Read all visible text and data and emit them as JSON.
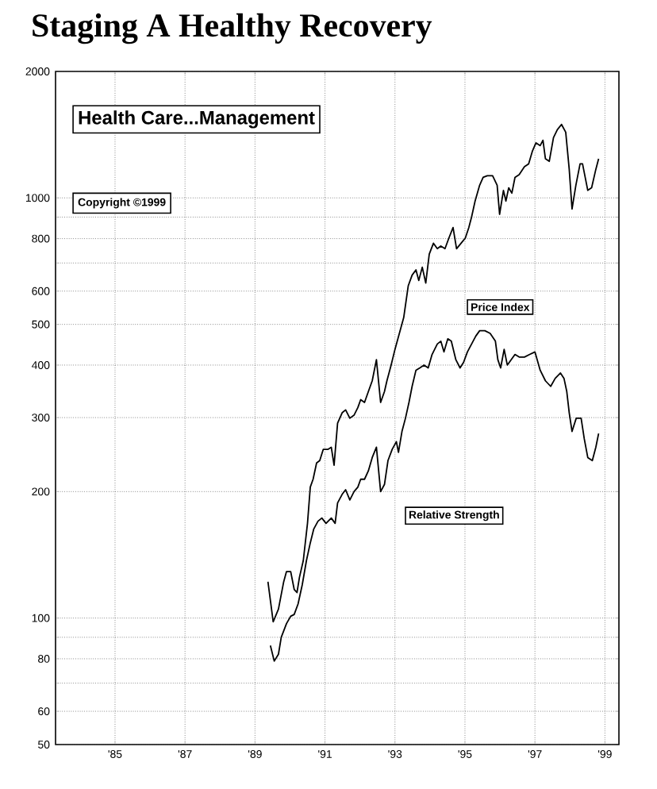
{
  "chart_data": {
    "type": "line",
    "title": "Staging A Healthy Recovery",
    "subtitle": "Health Care...Management",
    "annotations": [
      "Copyright ©1999"
    ],
    "x": [
      1989.37,
      1989.52,
      1989.67,
      1989.82,
      1989.9,
      1990.02,
      1990.12,
      1990.2,
      1990.27,
      1990.38,
      1990.5,
      1990.58,
      1990.66,
      1990.76,
      1990.85,
      1990.95,
      1991.08,
      1991.18,
      1991.26,
      1991.36,
      1991.49,
      1991.59,
      1991.71,
      1991.83,
      1991.94,
      1992.02,
      1992.13,
      1992.24,
      1992.35,
      1992.47,
      1992.59,
      1992.7,
      1992.77,
      1992.89,
      1993.0,
      1993.25,
      1993.38,
      1993.49,
      1993.6,
      1993.68,
      1993.78,
      1993.88,
      1993.98,
      1994.1,
      1994.21,
      1994.31,
      1994.43,
      1994.54,
      1994.66,
      1994.76,
      1994.89,
      1995.01,
      1995.11,
      1995.19,
      1995.29,
      1995.42,
      1995.52,
      1995.64,
      1995.79,
      1995.92,
      1995.99,
      1996.1,
      1996.17,
      1996.25,
      1996.34,
      1996.43,
      1996.55,
      1996.7,
      1996.82,
      1996.93,
      1997.03,
      1997.15,
      1997.23,
      1997.3,
      1997.41,
      1997.53,
      1997.64,
      1997.76,
      1997.88,
      1997.98,
      1998.06,
      1998.17,
      1998.29,
      1998.36,
      1998.51,
      1998.62,
      1998.74,
      1998.82
    ],
    "series": [
      {
        "name": "Price Index",
        "color": "#000000",
        "values": [
          122,
          98,
          105,
          122,
          129,
          129,
          117,
          115,
          125,
          137,
          168,
          205,
          214,
          234,
          237,
          252,
          252,
          255,
          231,
          291,
          308,
          313,
          299,
          304,
          317,
          331,
          326,
          346,
          367,
          412,
          326,
          346,
          367,
          400,
          436,
          519,
          618,
          655,
          674,
          636,
          684,
          627,
          735,
          780,
          757,
          768,
          757,
          802,
          850,
          757,
          780,
          802,
          850,
          901,
          983,
          1072,
          1119,
          1129,
          1129,
          1072,
          914,
          1042,
          983,
          1057,
          1026,
          1119,
          1136,
          1186,
          1205,
          1294,
          1352,
          1332,
          1371,
          1239,
          1222,
          1392,
          1453,
          1496,
          1433,
          1169,
          941,
          1072,
          1205,
          1205,
          1042,
          1057,
          1169,
          1239
        ]
      },
      {
        "name": "Relative Strength",
        "color": "#000000",
        "x": [
          1989.44,
          1989.55,
          1989.67,
          1989.75,
          1989.9,
          1990.02,
          1990.12,
          1990.23,
          1990.35,
          1990.47,
          1990.58,
          1990.68,
          1990.8,
          1990.91,
          1991.03,
          1991.18,
          1991.29,
          1991.36,
          1991.49,
          1991.59,
          1991.71,
          1991.83,
          1991.94,
          1992.02,
          1992.13,
          1992.24,
          1992.35,
          1992.47,
          1992.59,
          1992.7,
          1992.8,
          1992.92,
          1993.04,
          1993.1,
          1993.2,
          1993.3,
          1993.4,
          1993.49,
          1993.6,
          1993.71,
          1993.83,
          1993.95,
          1994.06,
          1994.21,
          1994.31,
          1994.4,
          1994.51,
          1994.61,
          1994.74,
          1994.86,
          1994.96,
          1995.07,
          1995.19,
          1995.31,
          1995.42,
          1995.57,
          1995.72,
          1995.87,
          1995.94,
          1996.02,
          1996.12,
          1996.21,
          1996.32,
          1996.43,
          1996.55,
          1996.7,
          1996.85,
          1997.0,
          1997.15,
          1997.3,
          1997.45,
          1997.58,
          1997.73,
          1997.83,
          1997.91,
          1997.98,
          1998.06,
          1998.18,
          1998.32,
          1998.41,
          1998.51,
          1998.64,
          1998.74,
          1998.82
        ],
        "values": [
          86,
          79,
          82,
          90,
          97,
          101,
          102,
          108,
          120,
          137,
          151,
          163,
          170,
          173,
          168,
          173,
          168,
          188,
          197,
          202,
          191,
          200,
          205,
          214,
          214,
          224,
          241,
          255,
          200,
          208,
          237,
          252,
          263,
          248,
          278,
          299,
          326,
          356,
          389,
          394,
          400,
          394,
          424,
          449,
          456,
          430,
          462,
          456,
          412,
          394,
          406,
          430,
          449,
          469,
          483,
          483,
          476,
          456,
          412,
          394,
          436,
          400,
          412,
          424,
          418,
          418,
          424,
          430,
          389,
          367,
          356,
          372,
          383,
          372,
          346,
          308,
          278,
          299,
          299,
          267,
          241,
          237,
          255,
          275
        ]
      }
    ],
    "xlim": [
      1983.3,
      1999.4
    ],
    "xticks": [
      {
        "value": 1985,
        "label": "'85"
      },
      {
        "value": 1987,
        "label": "'87"
      },
      {
        "value": 1989,
        "label": "'89"
      },
      {
        "value": 1991,
        "label": "'91"
      },
      {
        "value": 1993,
        "label": "'93"
      },
      {
        "value": 1995,
        "label": "'95"
      },
      {
        "value": 1997,
        "label": "'97"
      },
      {
        "value": 1999,
        "label": "'99"
      }
    ],
    "ylim": [
      50,
      2000
    ],
    "log": true,
    "yticks": [
      50,
      60,
      {
        "value": 70,
        "label": null
      },
      80,
      {
        "value": 90,
        "label": null
      },
      100,
      200,
      300,
      400,
      500,
      600,
      {
        "value": 700,
        "label": null
      },
      800,
      {
        "value": 900,
        "label": null
      },
      1000,
      2000
    ],
    "grid": true,
    "legend": false
  }
}
